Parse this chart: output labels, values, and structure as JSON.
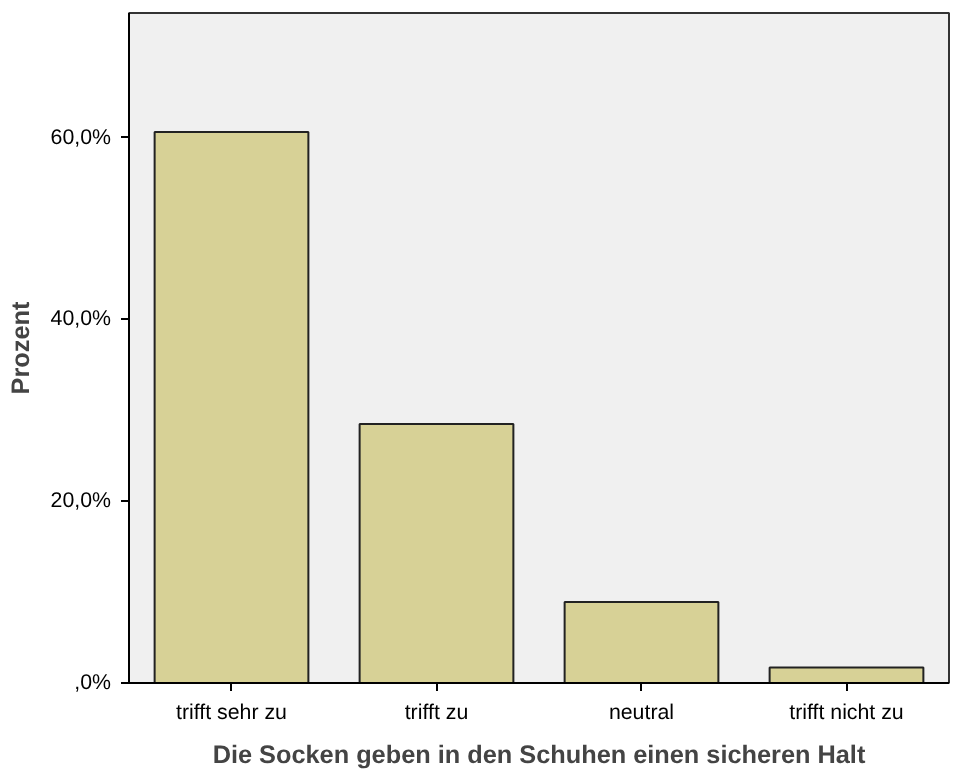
{
  "chart_data": {
    "type": "bar",
    "xlabel": "Die Socken geben in den Schuhen einen sicheren Halt",
    "ylabel": "Prozent",
    "categories": [
      "trifft sehr zu",
      "trifft zu",
      "neutral",
      "trifft nicht zu"
    ],
    "values": [
      60.6,
      28.5,
      8.9,
      1.7
    ],
    "color": "#d7d196",
    "ylim": [
      0,
      73.7
    ],
    "yticks": [
      {
        "value": 0,
        "label": ",0%"
      },
      {
        "value": 20,
        "label": "20,0%"
      },
      {
        "value": 40,
        "label": "40,0%"
      },
      {
        "value": 60,
        "label": "60,0%"
      }
    ],
    "grid": false
  }
}
